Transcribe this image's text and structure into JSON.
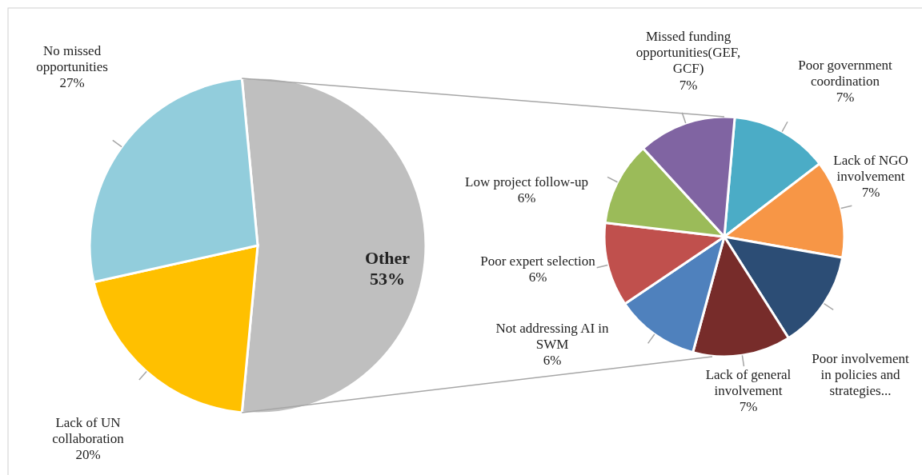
{
  "chart_data": [
    {
      "type": "pie",
      "categories": [
        "Other",
        "Lack of UN collaboration",
        "No missed opportunities"
      ],
      "values": [
        53,
        20,
        27
      ],
      "colors": [
        "#bfbfbf",
        "#ffc000",
        "#92cddc"
      ],
      "value_labels": [
        "53%",
        "20%",
        "27%"
      ]
    },
    {
      "type": "pie",
      "categories": [
        "Poor government coordination",
        "Lack of NGO involvement",
        "Poor involvement in policies and strategies...",
        "Lack of general involvement",
        "Not addressing AI in SWM",
        "Poor expert selection",
        "Low project follow-up",
        "Missed funding opportunities(GEF, GCF)"
      ],
      "values": [
        7,
        7,
        7,
        7,
        6,
        6,
        6,
        7
      ],
      "colors": [
        "#4bacc6",
        "#f79646",
        "#2c4d75",
        "#772c2a",
        "#4f81bd",
        "#c0504d",
        "#9bbb59",
        "#8064a2"
      ],
      "value_labels": [
        "7%",
        "7%",
        null,
        "7%",
        "6%",
        "6%",
        "6%",
        "7%"
      ]
    }
  ]
}
